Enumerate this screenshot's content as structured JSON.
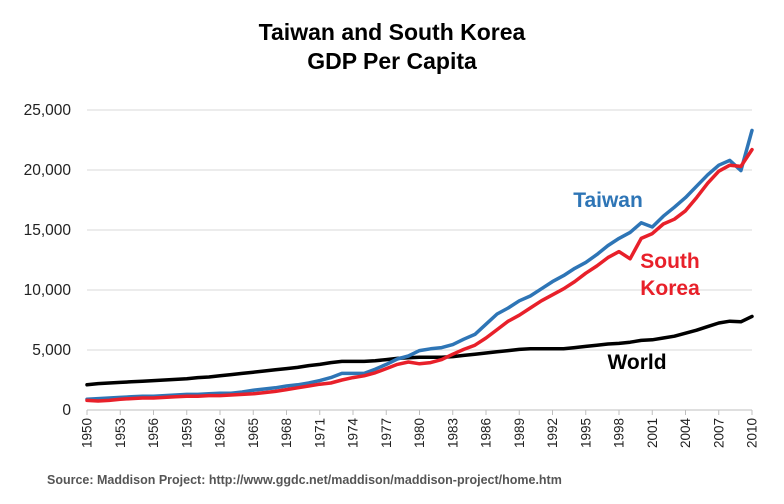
{
  "chart_data": {
    "type": "line",
    "title": [
      "Taiwan and South Korea",
      "GDP Per Capita"
    ],
    "xlabel": "",
    "ylabel": "",
    "xlim": [
      1950,
      2010
    ],
    "ylim": [
      0,
      25000
    ],
    "yticks": [
      0,
      5000,
      10000,
      15000,
      20000,
      25000
    ],
    "ytick_labels": [
      "0",
      "5,000",
      "10,000",
      "15,000",
      "20,000",
      "25,000"
    ],
    "xticks": [
      1950,
      1953,
      1956,
      1959,
      1962,
      1965,
      1968,
      1971,
      1974,
      1977,
      1980,
      1983,
      1986,
      1989,
      1992,
      1995,
      1998,
      2001,
      2004,
      2007,
      2010
    ],
    "xtick_labels": [
      "1950",
      "1953",
      "1956",
      "1959",
      "1962",
      "1965",
      "1968",
      "1971",
      "1974",
      "1977",
      "1980",
      "1983",
      "1986",
      "1989",
      "1992",
      "1995",
      "1998",
      "2001",
      "2004",
      "2007",
      "2010"
    ],
    "grid": "horizontal",
    "x": [
      1950,
      1951,
      1952,
      1953,
      1954,
      1955,
      1956,
      1957,
      1958,
      1959,
      1960,
      1961,
      1962,
      1963,
      1964,
      1965,
      1966,
      1967,
      1968,
      1969,
      1970,
      1971,
      1972,
      1973,
      1974,
      1975,
      1976,
      1977,
      1978,
      1979,
      1980,
      1981,
      1982,
      1983,
      1984,
      1985,
      1986,
      1987,
      1988,
      1989,
      1990,
      1991,
      1992,
      1993,
      1994,
      1995,
      1996,
      1997,
      1998,
      1999,
      2000,
      2001,
      2002,
      2003,
      2004,
      2005,
      2006,
      2007,
      2008,
      2009,
      2010
    ],
    "series": [
      {
        "name": "Taiwan",
        "color": "#2e75b6",
        "values": [
          900,
          950,
          1000,
          1050,
          1100,
          1150,
          1150,
          1200,
          1250,
          1300,
          1300,
          1350,
          1400,
          1400,
          1500,
          1650,
          1750,
          1850,
          2000,
          2100,
          2250,
          2450,
          2700,
          3050,
          3050,
          3050,
          3400,
          3800,
          4250,
          4500,
          4950,
          5100,
          5200,
          5450,
          5900,
          6300,
          7150,
          8000,
          8500,
          9100,
          9500,
          10100,
          10700,
          11200,
          11800,
          12300,
          12950,
          13700,
          14300,
          14800,
          15600,
          15250,
          16150,
          16900,
          17700,
          18650,
          19600,
          20400,
          20800,
          19950,
          23300
        ]
      },
      {
        "name": "South Korea",
        "label_lines": [
          "South",
          "Korea"
        ],
        "color": "#e8202a",
        "values": [
          800,
          750,
          800,
          900,
          950,
          1000,
          1000,
          1050,
          1100,
          1150,
          1150,
          1200,
          1200,
          1250,
          1300,
          1350,
          1450,
          1550,
          1700,
          1850,
          2000,
          2150,
          2250,
          2500,
          2700,
          2850,
          3100,
          3450,
          3800,
          4000,
          3850,
          3950,
          4200,
          4650,
          5050,
          5400,
          6000,
          6700,
          7400,
          7900,
          8500,
          9100,
          9600,
          10100,
          10700,
          11400,
          12000,
          12700,
          13200,
          12600,
          14300,
          14700,
          15500,
          15900,
          16600,
          17700,
          18900,
          19900,
          20400,
          20300,
          21700
        ]
      },
      {
        "name": "World",
        "color": "#000000",
        "values": [
          2100,
          2200,
          2250,
          2300,
          2350,
          2400,
          2450,
          2500,
          2550,
          2600,
          2700,
          2750,
          2850,
          2950,
          3050,
          3150,
          3250,
          3350,
          3450,
          3550,
          3700,
          3800,
          3950,
          4050,
          4050,
          4050,
          4100,
          4200,
          4300,
          4350,
          4400,
          4400,
          4400,
          4450,
          4550,
          4650,
          4750,
          4850,
          4950,
          5050,
          5100,
          5100,
          5100,
          5100,
          5200,
          5300,
          5400,
          5500,
          5550,
          5650,
          5800,
          5850,
          6000,
          6150,
          6400,
          6650,
          6950,
          7250,
          7400,
          7350,
          7800
        ]
      }
    ]
  },
  "source": "Source:  Maddison Project: http://www.ggdc.net/maddison/maddison-project/home.htm"
}
